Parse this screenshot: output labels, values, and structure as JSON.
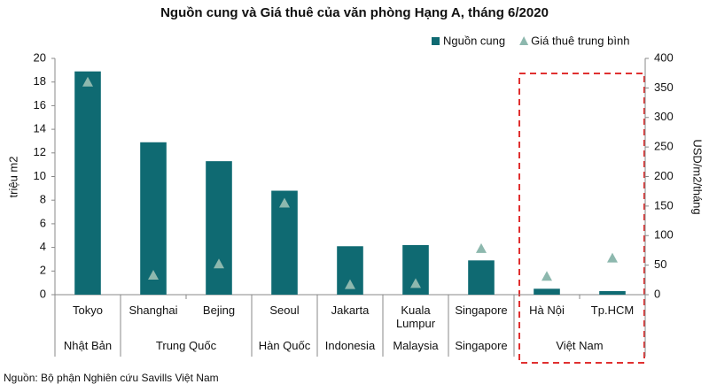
{
  "chart_data": {
    "type": "bar",
    "title": "Nguồn cung và Giá thuê của văn phòng Hạng A, tháng 6/2020",
    "y_label": "triệu m2",
    "y2_label": "USD/m2/tháng",
    "source": "Nguồn: Bộ phận Nghiên cứu Savills Việt Nam",
    "categories": [
      "Tokyo",
      "Shanghai",
      "Bejing",
      "Seoul",
      "Jakarta",
      "Kuala Lumpur",
      "Singapore",
      "Hà Nội",
      "Tp.HCM"
    ],
    "groups": [
      {
        "name": "Nhật Bản",
        "span": 1
      },
      {
        "name": "Trung Quốc",
        "span": 2
      },
      {
        "name": "Hàn Quốc",
        "span": 1
      },
      {
        "name": "Indonesia",
        "span": 1
      },
      {
        "name": "Malaysia",
        "span": 1
      },
      {
        "name": "Singapore",
        "span": 1
      },
      {
        "name": "Việt Nam",
        "span": 2
      }
    ],
    "series": [
      {
        "name": "Nguồn cung",
        "type": "bar",
        "color": "#0f6a72",
        "values": [
          18.9,
          12.9,
          11.3,
          8.8,
          4.1,
          4.2,
          2.9,
          0.5,
          0.3
        ]
      },
      {
        "name": "Giá thuê trung bình",
        "type": "triangle",
        "axis": "y2",
        "color": "#8db8ae",
        "values": [
          360,
          33,
          52,
          155,
          17,
          19,
          78,
          31,
          62
        ]
      }
    ],
    "ylim": [
      0,
      20
    ],
    "yticks": [
      0,
      2,
      4,
      6,
      8,
      10,
      12,
      14,
      16,
      18,
      20
    ],
    "y2lim": [
      0,
      400
    ],
    "y2ticks": [
      0,
      50,
      100,
      150,
      200,
      250,
      300,
      350,
      400
    ],
    "grid": false
  }
}
